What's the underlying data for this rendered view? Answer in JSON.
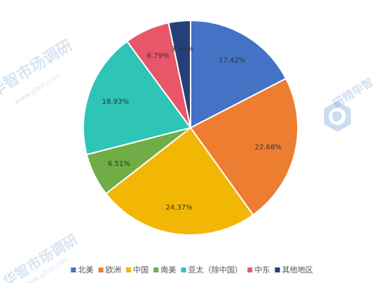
{
  "chart_data": {
    "type": "pie",
    "title": "",
    "slices": [
      {
        "label": "北美",
        "value": 17.42,
        "display": "17.42%",
        "color": "#4472C4"
      },
      {
        "label": "欧洲",
        "value": 22.68,
        "display": "22.68%",
        "color": "#ED7D31"
      },
      {
        "label": "中国",
        "value": 24.37,
        "display": "24.37%",
        "color": "#F2B705"
      },
      {
        "label": "南美",
        "value": 6.51,
        "display": "6.51%",
        "color": "#70AD47"
      },
      {
        "label": "亚太（除中国）",
        "value": 18.93,
        "display": "18.93%",
        "color": "#2EC4B6"
      },
      {
        "label": "中东",
        "value": 6.79,
        "display": "6.79%",
        "color": "#E8566A"
      },
      {
        "label": "其他地区",
        "value": 3.3,
        "display": "3.30%",
        "color": "#243F7A"
      }
    ],
    "legend_position": "bottom"
  },
  "watermark": {
    "text": "华智市场调研",
    "url": "www.yjbzr.com",
    "logo_text": "研精毕智",
    "icon": "globe-logo-icon"
  }
}
